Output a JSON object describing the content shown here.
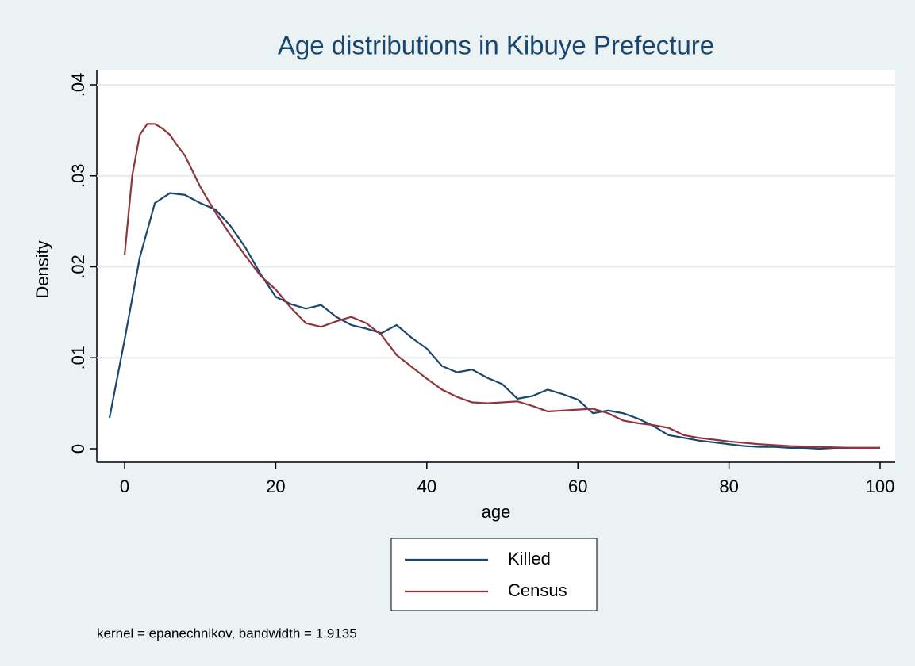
{
  "chart_data": {
    "type": "line",
    "title": "Age distributions in Kibuye Prefecture",
    "x_label": "age",
    "y_label": "Density",
    "note": "kernel = epanechnikov, bandwidth = 1.9135",
    "xlim": [
      -2,
      100
    ],
    "ylim": [
      0,
      0.04
    ],
    "xticks": [
      0,
      20,
      40,
      60,
      80,
      100
    ],
    "yticks": [
      0,
      {
        "value": 0.01,
        "label": ".01"
      },
      {
        "value": 0.02,
        "label": ".02"
      },
      {
        "value": 0.03,
        "label": ".03"
      },
      {
        "value": 0.04,
        "label": ".04"
      }
    ],
    "grid": true,
    "legend": "bottom",
    "series": [
      {
        "name": "Killed",
        "color": "#1a476f",
        "x": [
          -2,
          0,
          2,
          4,
          6,
          8,
          10,
          12,
          14,
          16,
          18,
          20,
          22,
          24,
          26,
          28,
          30,
          32,
          34,
          36,
          38,
          40,
          42,
          44,
          46,
          48,
          50,
          52,
          54,
          56,
          58,
          60,
          62,
          64,
          66,
          68,
          70,
          72,
          74,
          76,
          78,
          80,
          82,
          84,
          86,
          88,
          90,
          92,
          94,
          96,
          98,
          100
        ],
        "values": [
          0.0034,
          0.012,
          0.021,
          0.027,
          0.0281,
          0.0279,
          0.027,
          0.0263,
          0.0245,
          0.0221,
          0.0192,
          0.0167,
          0.0159,
          0.0154,
          0.0158,
          0.0145,
          0.0136,
          0.0132,
          0.0127,
          0.0136,
          0.0122,
          0.011,
          0.0091,
          0.0084,
          0.0087,
          0.0078,
          0.0071,
          0.0055,
          0.0058,
          0.0065,
          0.006,
          0.0054,
          0.0039,
          0.0042,
          0.0039,
          0.0033,
          0.0025,
          0.0015,
          0.0012,
          0.0009,
          0.0007,
          0.0005,
          0.0003,
          0.0002,
          0.0002,
          0.0001,
          0.0001,
          0.0,
          0.0001,
          0.0001,
          0.0001,
          0.0001
        ]
      },
      {
        "name": "Census",
        "color": "#90353b",
        "x": [
          0,
          1,
          2,
          3,
          4,
          5,
          6,
          7,
          8,
          9,
          10,
          12,
          14,
          16,
          18,
          20,
          22,
          24,
          26,
          28,
          30,
          32,
          34,
          36,
          38,
          40,
          42,
          44,
          46,
          48,
          50,
          52,
          54,
          56,
          58,
          60,
          62,
          64,
          66,
          68,
          70,
          72,
          74,
          76,
          78,
          80,
          84,
          88,
          92,
          96,
          100
        ],
        "values": [
          0.0213,
          0.03,
          0.0345,
          0.0357,
          0.0357,
          0.0352,
          0.0345,
          0.0333,
          0.0322,
          0.0305,
          0.0288,
          0.026,
          0.0235,
          0.0212,
          0.019,
          0.0175,
          0.0155,
          0.0138,
          0.0134,
          0.014,
          0.0145,
          0.0138,
          0.0125,
          0.0103,
          0.009,
          0.0077,
          0.0065,
          0.0057,
          0.0051,
          0.005,
          0.0051,
          0.0052,
          0.0047,
          0.0041,
          0.0042,
          0.0043,
          0.0044,
          0.0039,
          0.0031,
          0.0028,
          0.0026,
          0.0023,
          0.0015,
          0.0012,
          0.001,
          0.0008,
          0.0005,
          0.0003,
          0.0002,
          0.0001,
          0.0001
        ]
      }
    ]
  }
}
